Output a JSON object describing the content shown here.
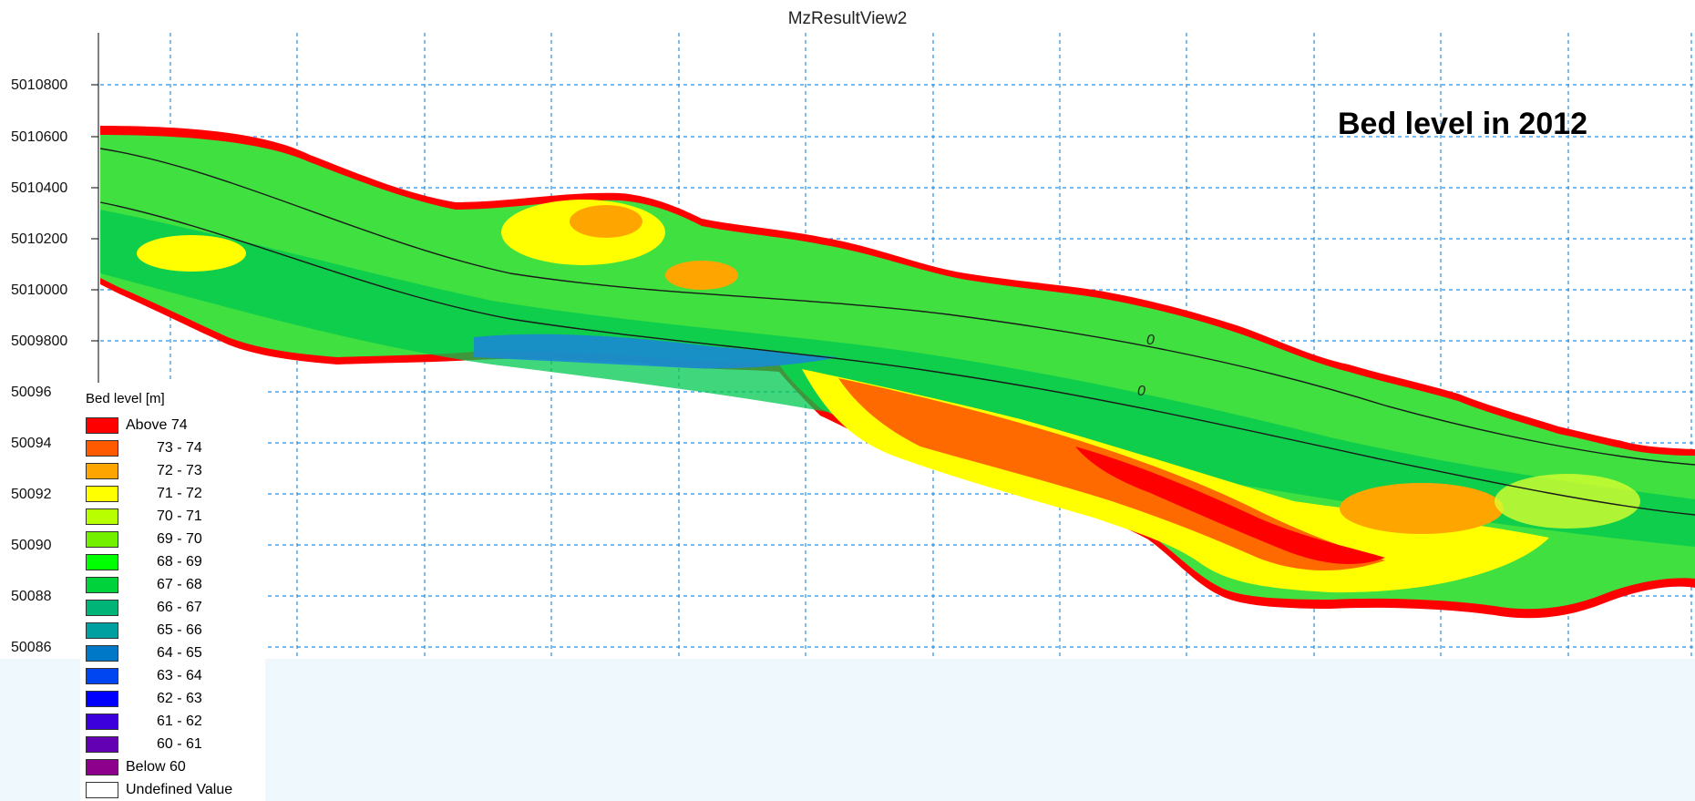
{
  "view": {
    "title": "MzResultView2",
    "annotation": "Bed level in 2012"
  },
  "axes": {
    "y_ticks": [
      "5010800",
      "5010600",
      "5010400",
      "5010200",
      "5010000",
      "5009800",
      "50096",
      "50094",
      "50092",
      "50090",
      "50088",
      "50086"
    ]
  },
  "contour_labels": [
    "0",
    "0"
  ],
  "legend": {
    "title": "Bed level [m]",
    "items": [
      {
        "label": "Above 74",
        "color": "#ff0000"
      },
      {
        "label": "73 - 74",
        "color": "#ff5a00"
      },
      {
        "label": "72 - 73",
        "color": "#ffa500"
      },
      {
        "label": "71 - 72",
        "color": "#ffff00"
      },
      {
        "label": "70 - 71",
        "color": "#b8ff00"
      },
      {
        "label": "69 - 70",
        "color": "#72f000"
      },
      {
        "label": "68 - 69",
        "color": "#00ff00"
      },
      {
        "label": "67 - 68",
        "color": "#00d23c"
      },
      {
        "label": "66 - 67",
        "color": "#00b478"
      },
      {
        "label": "65 - 66",
        "color": "#00a0a0"
      },
      {
        "label": "64 - 65",
        "color": "#0078c8"
      },
      {
        "label": "63 - 64",
        "color": "#0046f0"
      },
      {
        "label": "62 - 63",
        "color": "#0000ff"
      },
      {
        "label": "61 - 62",
        "color": "#3c00dc"
      },
      {
        "label": "60 - 61",
        "color": "#6400b4"
      },
      {
        "label": "Below 60",
        "color": "#8c008c"
      },
      {
        "label": "Undefined Value",
        "color": "#ffffff"
      }
    ]
  }
}
